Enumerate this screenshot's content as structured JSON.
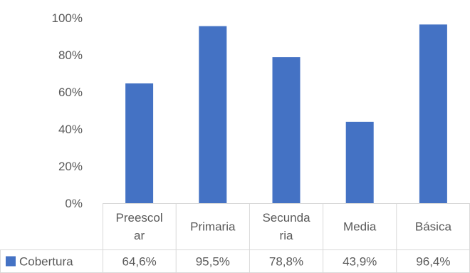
{
  "chart_data": {
    "type": "bar",
    "categories": [
      [
        "Preescol",
        "ar"
      ],
      [
        "Primaria"
      ],
      [
        "Secunda",
        "ria"
      ],
      [
        "Media"
      ],
      [
        "Básica"
      ]
    ],
    "series": [
      {
        "name": "Cobertura",
        "color": "#4472C4",
        "values": [
          64.6,
          95.5,
          78.8,
          43.9,
          96.4
        ],
        "value_labels": [
          "64,6%",
          "95,5%",
          "78,8%",
          "43,9%",
          "96,4%"
        ]
      }
    ],
    "y_ticks": [
      "0%",
      "20%",
      "40%",
      "60%",
      "80%",
      "100%"
    ],
    "ylim": [
      0,
      100
    ],
    "grid": false,
    "data_table": true
  }
}
